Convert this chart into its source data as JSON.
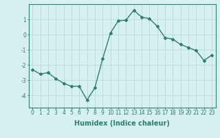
{
  "x": [
    0,
    1,
    2,
    3,
    4,
    5,
    6,
    7,
    8,
    9,
    10,
    11,
    12,
    13,
    14,
    15,
    16,
    17,
    18,
    19,
    20,
    21,
    22,
    23
  ],
  "y": [
    -2.3,
    -2.6,
    -2.5,
    -2.9,
    -3.2,
    -3.4,
    -3.4,
    -4.3,
    -3.5,
    -1.6,
    0.1,
    0.9,
    0.95,
    1.6,
    1.15,
    1.05,
    0.55,
    -0.2,
    -0.3,
    -0.65,
    -0.85,
    -1.05,
    -1.7,
    -1.35
  ],
  "line_color": "#2e7d6e",
  "marker": "D",
  "marker_size": 2.0,
  "bg_color": "#d7f0f0",
  "grid_color": "#b8dada",
  "xlabel": "Humidex (Indice chaleur)",
  "xlim": [
    -0.5,
    23.5
  ],
  "ylim": [
    -4.8,
    2.0
  ],
  "yticks": [
    -4,
    -3,
    -2,
    -1,
    0,
    1
  ],
  "xticks": [
    0,
    1,
    2,
    3,
    4,
    5,
    6,
    7,
    8,
    9,
    10,
    11,
    12,
    13,
    14,
    15,
    16,
    17,
    18,
    19,
    20,
    21,
    22,
    23
  ],
  "tick_fontsize": 5.5,
  "xlabel_fontsize": 7.0,
  "line_width": 1.0
}
